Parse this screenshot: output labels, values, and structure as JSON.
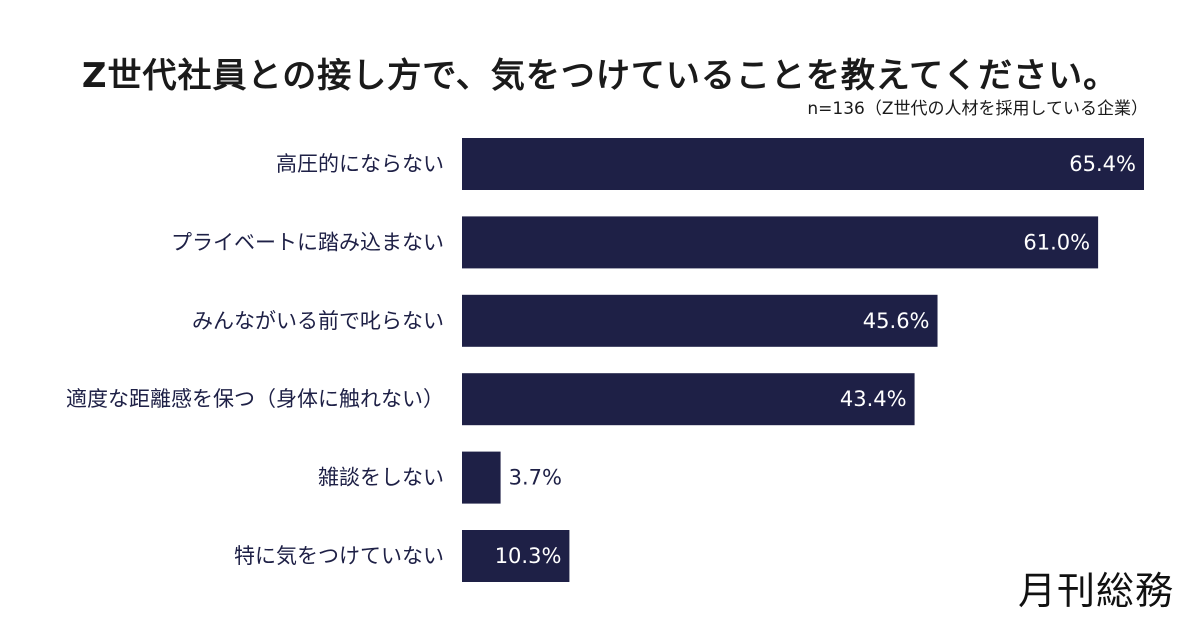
{
  "chart_data": {
    "type": "bar",
    "orientation": "horizontal",
    "title": "Z世代社員との接し方で、気をつけていることを教えてください。",
    "subtitle": "n=136（Z世代の人材を採用している企業）",
    "categories": [
      "高圧的にならない",
      "プライベートに踏み込まない",
      "みんながいる前で叱らない",
      "適度な距離感を保つ（身体に触れない）",
      "雑談をしない",
      "特に気をつけていない"
    ],
    "values": [
      65.4,
      61.0,
      45.6,
      43.4,
      3.7,
      10.3
    ],
    "value_labels": [
      "65.4%",
      "61.0%",
      "45.6%",
      "43.4%",
      "3.7%",
      "10.3%"
    ],
    "unit": "%",
    "xlim": [
      0,
      65.4
    ],
    "grid": false,
    "bar_color": "#1e2046"
  },
  "brand": {
    "logo_text": "月刊総務"
  }
}
